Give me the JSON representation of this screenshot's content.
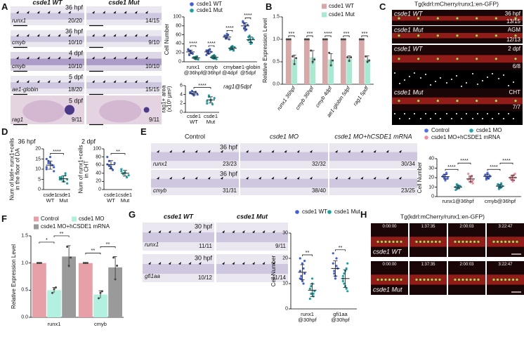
{
  "panel_letters": [
    "A",
    "B",
    "C",
    "D",
    "E",
    "F",
    "G",
    "H"
  ],
  "panel_A_images": {
    "columns": [
      "csde1 WT",
      "csde1 Mut"
    ],
    "rows": [
      {
        "time": "36 hpf",
        "gene": "runx1",
        "counts": [
          "20/20",
          "14/15"
        ]
      },
      {
        "time": "36 hpf",
        "gene": "cmyb",
        "counts": [
          "10/10",
          "9/10"
        ]
      },
      {
        "time": "4 dpf",
        "gene": "cmyb",
        "counts": [
          "10/10",
          "10/10"
        ]
      },
      {
        "time": "5 dpf",
        "gene": "ae1-globin",
        "counts": [
          "18/20",
          "15/15"
        ]
      },
      {
        "time": "5 dpf",
        "gene": "rag1",
        "counts": [
          "9/11",
          "9/11"
        ]
      }
    ]
  },
  "panel_C_images": {
    "title": "Tg(kdrl:mCherry/runx1:en-GFP)",
    "images": [
      {
        "genotype": "csde1 WT",
        "stage": "36 hpf",
        "count": "13/15"
      },
      {
        "genotype": "csde1 Mut",
        "stage": "AGM",
        "count": "12/13"
      },
      {
        "genotype": "csde1 WT",
        "stage": "2 dpf",
        "count": "6/8"
      },
      {
        "genotype": "csde1 Mut",
        "stage": "CHT",
        "count": "7/7"
      }
    ]
  },
  "panel_E_images": {
    "columns": [
      "Control",
      "csde1 MO",
      "csde1 MO+hCSDE1 mRNA"
    ],
    "rows": [
      {
        "time": "36 hpf",
        "gene": "runx1",
        "counts": [
          "23/23",
          "32/32",
          "30/34"
        ]
      },
      {
        "time": "36 hpf",
        "gene": "cmyb",
        "counts": [
          "31/31",
          "38/40",
          "23/25"
        ]
      }
    ]
  },
  "panel_G_images": {
    "columns": [
      "csde1 WT",
      "csde1 Mut"
    ],
    "rows": [
      {
        "time": "30 hpf",
        "gene": "runx1",
        "counts": [
          "11/11",
          "9/11"
        ]
      },
      {
        "time": "30 hpf",
        "gene": "gfi1aa",
        "counts": [
          "10/12",
          "11/14"
        ]
      }
    ]
  },
  "panel_H_images": {
    "title": "Tg(kdrl:mCherry/runx1:en-GFP)",
    "times": [
      "0:00:00",
      "1:37:35",
      "2:00:03",
      "3:22:47"
    ],
    "rows": [
      "csde1 WT",
      "csde1 Mut"
    ]
  },
  "chart_data": [
    {
      "type": "dot",
      "ylabel": "Cell Number",
      "categories": [
        "runx1\n@36hpf",
        "cmyb\n@36hpf",
        "cmyb\n@4dpf",
        "ae1-globin\n@5dpf"
      ],
      "ylim": [
        0,
        100
      ],
      "yticks": [
        0,
        20,
        40,
        60,
        80,
        100
      ],
      "series": [
        {
          "name": "csde1 WT",
          "color": "#3f5fd8",
          "values": [
            [
              28,
              25,
              22,
              20,
              18,
              26,
              15,
              23
            ],
            [
              25,
              20,
              18,
              28,
              22,
              15,
              24,
              26
            ],
            [
              58,
              52,
              55,
              60,
              50,
              57,
              53,
              62
            ],
            [
              90,
              85,
              78,
              72,
              82,
              88,
              75,
              70
            ]
          ],
          "means": [
            22,
            22,
            55,
            80
          ],
          "sd": [
            4,
            4,
            4,
            7
          ]
        },
        {
          "name": "csde1 Mut",
          "color": "#17a2a0",
          "values": [
            [
              10,
              8,
              6,
              12,
              5,
              9,
              7,
              11
            ],
            [
              12,
              8,
              15,
              10,
              6,
              9,
              13,
              7
            ],
            [
              30,
              28,
              35,
              25,
              32,
              27,
              33,
              29
            ],
            [
              55,
              50,
              45,
              42,
              52,
              48,
              58,
              40
            ]
          ],
          "means": [
            8.5,
            10,
            30,
            49
          ],
          "sd": [
            2.5,
            3,
            3,
            6
          ]
        }
      ],
      "significance": [
        [
          "****"
        ],
        [
          "****"
        ],
        [
          "****"
        ],
        [
          "****"
        ]
      ]
    },
    {
      "type": "dot",
      "ylabel": "rag1+ area\n(x10³ μm²)",
      "annotation": "rag1@5dpf",
      "categories": [
        "csde1\nWT",
        "csde1\nMut"
      ],
      "ylim": [
        0,
        6
      ],
      "yticks": [
        0,
        2,
        4,
        6
      ],
      "series": [
        {
          "colors": [
            "#3f5fd8",
            "#17a2a0"
          ],
          "values": [
            [
              4.5,
              4.2,
              3.9,
              4.6,
              4.0,
              4.3,
              4.8,
              3.8
            ],
            [
              2.0,
              3.5,
              2.8,
              1.8,
              3.2,
              2.5,
              3.8,
              2.6
            ]
          ],
          "means": [
            4.3,
            2.8
          ],
          "sd": [
            0.35,
            0.7
          ]
        }
      ],
      "significance": "****"
    },
    {
      "type": "bar",
      "ylabel": "Relative Expression Level",
      "categories": [
        "runx1 36hpf",
        "cmyb 36hpf",
        "cmyb 4dpf",
        "ae1-globin 5dpf",
        "rag1 5pdf"
      ],
      "ylim": [
        0,
        1.5
      ],
      "yticks": [
        {
          "value": 0,
          "label": "0.0"
        },
        0.5,
        {
          "value": 1,
          "label": "1.0"
        },
        1.5
      ],
      "series": [
        {
          "name": "csde1 WT",
          "color": "#d8a7a7",
          "values": [
            1,
            1,
            1,
            1,
            1
          ],
          "errors": [
            0,
            0,
            0,
            0,
            0
          ],
          "points": [
            [
              1,
              1,
              1
            ],
            [
              1,
              1,
              1
            ],
            [
              1,
              1,
              1
            ],
            [
              1,
              1,
              1
            ],
            [
              1,
              1,
              1
            ]
          ]
        },
        {
          "name": "csde1 Mut",
          "color": "#a6ead2",
          "values": [
            0.55,
            0.6,
            0.55,
            0.57,
            0.55
          ],
          "errors": [
            0.1,
            0.15,
            0.13,
            0.06,
            0.08
          ],
          "points": [
            [
              0.62,
              0.45,
              0.58
            ],
            [
              0.75,
              0.5,
              0.55
            ],
            [
              0.7,
              0.42,
              0.53
            ],
            [
              0.6,
              0.52,
              0.6
            ],
            [
              0.62,
              0.5,
              0.53
            ]
          ]
        }
      ],
      "significance": [
        [
          "***"
        ],
        [
          "***"
        ],
        [
          "****"
        ],
        [
          "***"
        ],
        [
          "***"
        ]
      ]
    },
    {
      "type": "dot",
      "title": "36 hpf",
      "ylabel": "Num of kdrl+ runx1+cells\nin the floor of DA",
      "categories": [
        "csde1\nWT",
        "csde1\nMut"
      ],
      "ylim": [
        0,
        20
      ],
      "yticks": [
        0,
        5,
        10,
        15,
        20
      ],
      "series": [
        {
          "colors": [
            "#3f5fd8",
            "#17a2a0"
          ],
          "values": [
            [
              15,
              14,
              13,
              12,
              11,
              10,
              13,
              16,
              12,
              9,
              11,
              14
            ],
            [
              6,
              5,
              4,
              7,
              3,
              5,
              6,
              4,
              8,
              5
            ]
          ],
          "means": [
            12,
            5.3
          ],
          "sd": [
            2,
            1.5
          ]
        }
      ],
      "significance": "****"
    },
    {
      "type": "dot",
      "title": "2 dpf",
      "ylabel": "Num of runx1+cells\nin CHT",
      "categories": [
        "csde1\nWT",
        "csde1\nMut"
      ],
      "ylim": [
        0,
        100
      ],
      "yticks": [
        0,
        20,
        40,
        60,
        80,
        100
      ],
      "series": [
        {
          "colors": [
            "#3f5fd8",
            "#17a2a0"
          ],
          "values": [
            [
              62,
              70,
              55,
              48,
              65,
              80,
              58,
              52
            ],
            [
              45,
              38,
              42,
              30,
              35,
              50,
              40
            ]
          ],
          "means": [
            61,
            40
          ],
          "sd": [
            10,
            7
          ]
        }
      ],
      "significance": "**"
    },
    {
      "type": "dot",
      "ylabel": "Cell Number",
      "categories": [
        "runx1@36hpf",
        "cmyb@36hpf"
      ],
      "ylim": [
        0,
        40
      ],
      "yticks": [
        0,
        10,
        20,
        30,
        40
      ],
      "series": [
        {
          "name": "Control",
          "color": "#4c6ef5",
          "values": [
            [
              22,
              20,
              18,
              25,
              19,
              21,
              23,
              17,
              24,
              20
            ],
            [
              22,
              20,
              25,
              19,
              21,
              23,
              18,
              24,
              20,
              22
            ]
          ],
          "means": [
            21,
            21.4
          ],
          "sd": [
            2.5,
            2.2
          ]
        },
        {
          "name": "csde1 MO",
          "color": "#22a6b3",
          "values": [
            [
              10,
              8,
              12,
              9,
              11,
              7,
              13,
              10,
              9,
              11
            ],
            [
              12,
              10,
              9,
              14,
              11,
              13,
              8,
              12,
              10,
              11
            ]
          ],
          "means": [
            10,
            11
          ],
          "sd": [
            1.8,
            1.8
          ]
        },
        {
          "name": "csde1 MO+hCSDE1 mRNA",
          "color": "#f28b9b",
          "values": [
            [
              18,
              20,
              15,
              22,
              17,
              24,
              19,
              16,
              21,
              14
            ],
            [
              20,
              18,
              22,
              17,
              24,
              19,
              21,
              16,
              23,
              20
            ]
          ],
          "means": [
            18.6,
            20
          ],
          "sd": [
            3,
            2.5
          ]
        }
      ],
      "significance": [
        [
          "****",
          "****"
        ],
        [
          "****",
          "****"
        ]
      ]
    },
    {
      "type": "bar",
      "ylabel": "Relative Expression Level",
      "categories": [
        "runx1",
        "cmyb"
      ],
      "ylim": [
        0,
        1.5
      ],
      "yticks": [
        {
          "value": 0,
          "label": "0.0"
        },
        0.5,
        {
          "value": 1,
          "label": "1.0"
        },
        1.5
      ],
      "series": [
        {
          "name": "Control",
          "color": "#e8a0a8",
          "values": [
            1,
            1
          ],
          "errors": [
            0,
            0
          ],
          "points": [
            [
              1,
              1,
              1
            ],
            [
              1,
              1,
              1
            ]
          ]
        },
        {
          "name": "csde1 MO",
          "color": "#b2f0e0",
          "values": [
            0.5,
            0.42
          ],
          "errors": [
            0.05,
            0.07
          ],
          "points": [
            [
              0.45,
              0.52,
              0.55
            ],
            [
              0.35,
              0.45,
              0.48
            ]
          ]
        },
        {
          "name": "csde1 MO+hCSDE1 mRNA",
          "color": "#9a9a9a",
          "values": [
            1.12,
            0.92
          ],
          "errors": [
            0.2,
            0.2
          ],
          "points": [
            [
              1.3,
              0.95,
              1.1
            ],
            [
              1.1,
              0.7,
              0.95
            ]
          ]
        }
      ],
      "significance": [
        [
          "*",
          "**"
        ],
        [
          "**",
          "**"
        ]
      ]
    },
    {
      "type": "dot",
      "ylabel": "Cell Number",
      "categories": [
        "runx1\n@30hpf",
        "gfi1aa\n@30hpf"
      ],
      "ylim": [
        0,
        30
      ],
      "yticks": [
        0,
        10,
        20,
        30
      ],
      "series": [
        {
          "name": "csde1 WT",
          "color": "#3f5fd8",
          "values": [
            [
              15,
              12,
              18,
              10,
              14,
              20,
              13,
              11,
              16,
              19,
              12
            ],
            [
              18,
              15,
              12,
              20,
              16,
              22,
              14,
              13,
              17
            ]
          ],
          "means": [
            14.5,
            16
          ],
          "sd": [
            3,
            3
          ]
        },
        {
          "name": "csde1 Mut",
          "color": "#17a2a0",
          "values": [
            [
              8,
              6,
              10,
              5,
              7,
              4,
              9,
              12,
              6
            ],
            [
              12,
              10,
              15,
              8,
              18,
              11,
              14,
              9,
              16,
              7,
              13
            ]
          ],
          "means": [
            7.4,
            12
          ],
          "sd": [
            2.5,
            3.5
          ]
        }
      ],
      "significance": [
        [
          "**"
        ],
        [
          "**"
        ]
      ]
    }
  ]
}
